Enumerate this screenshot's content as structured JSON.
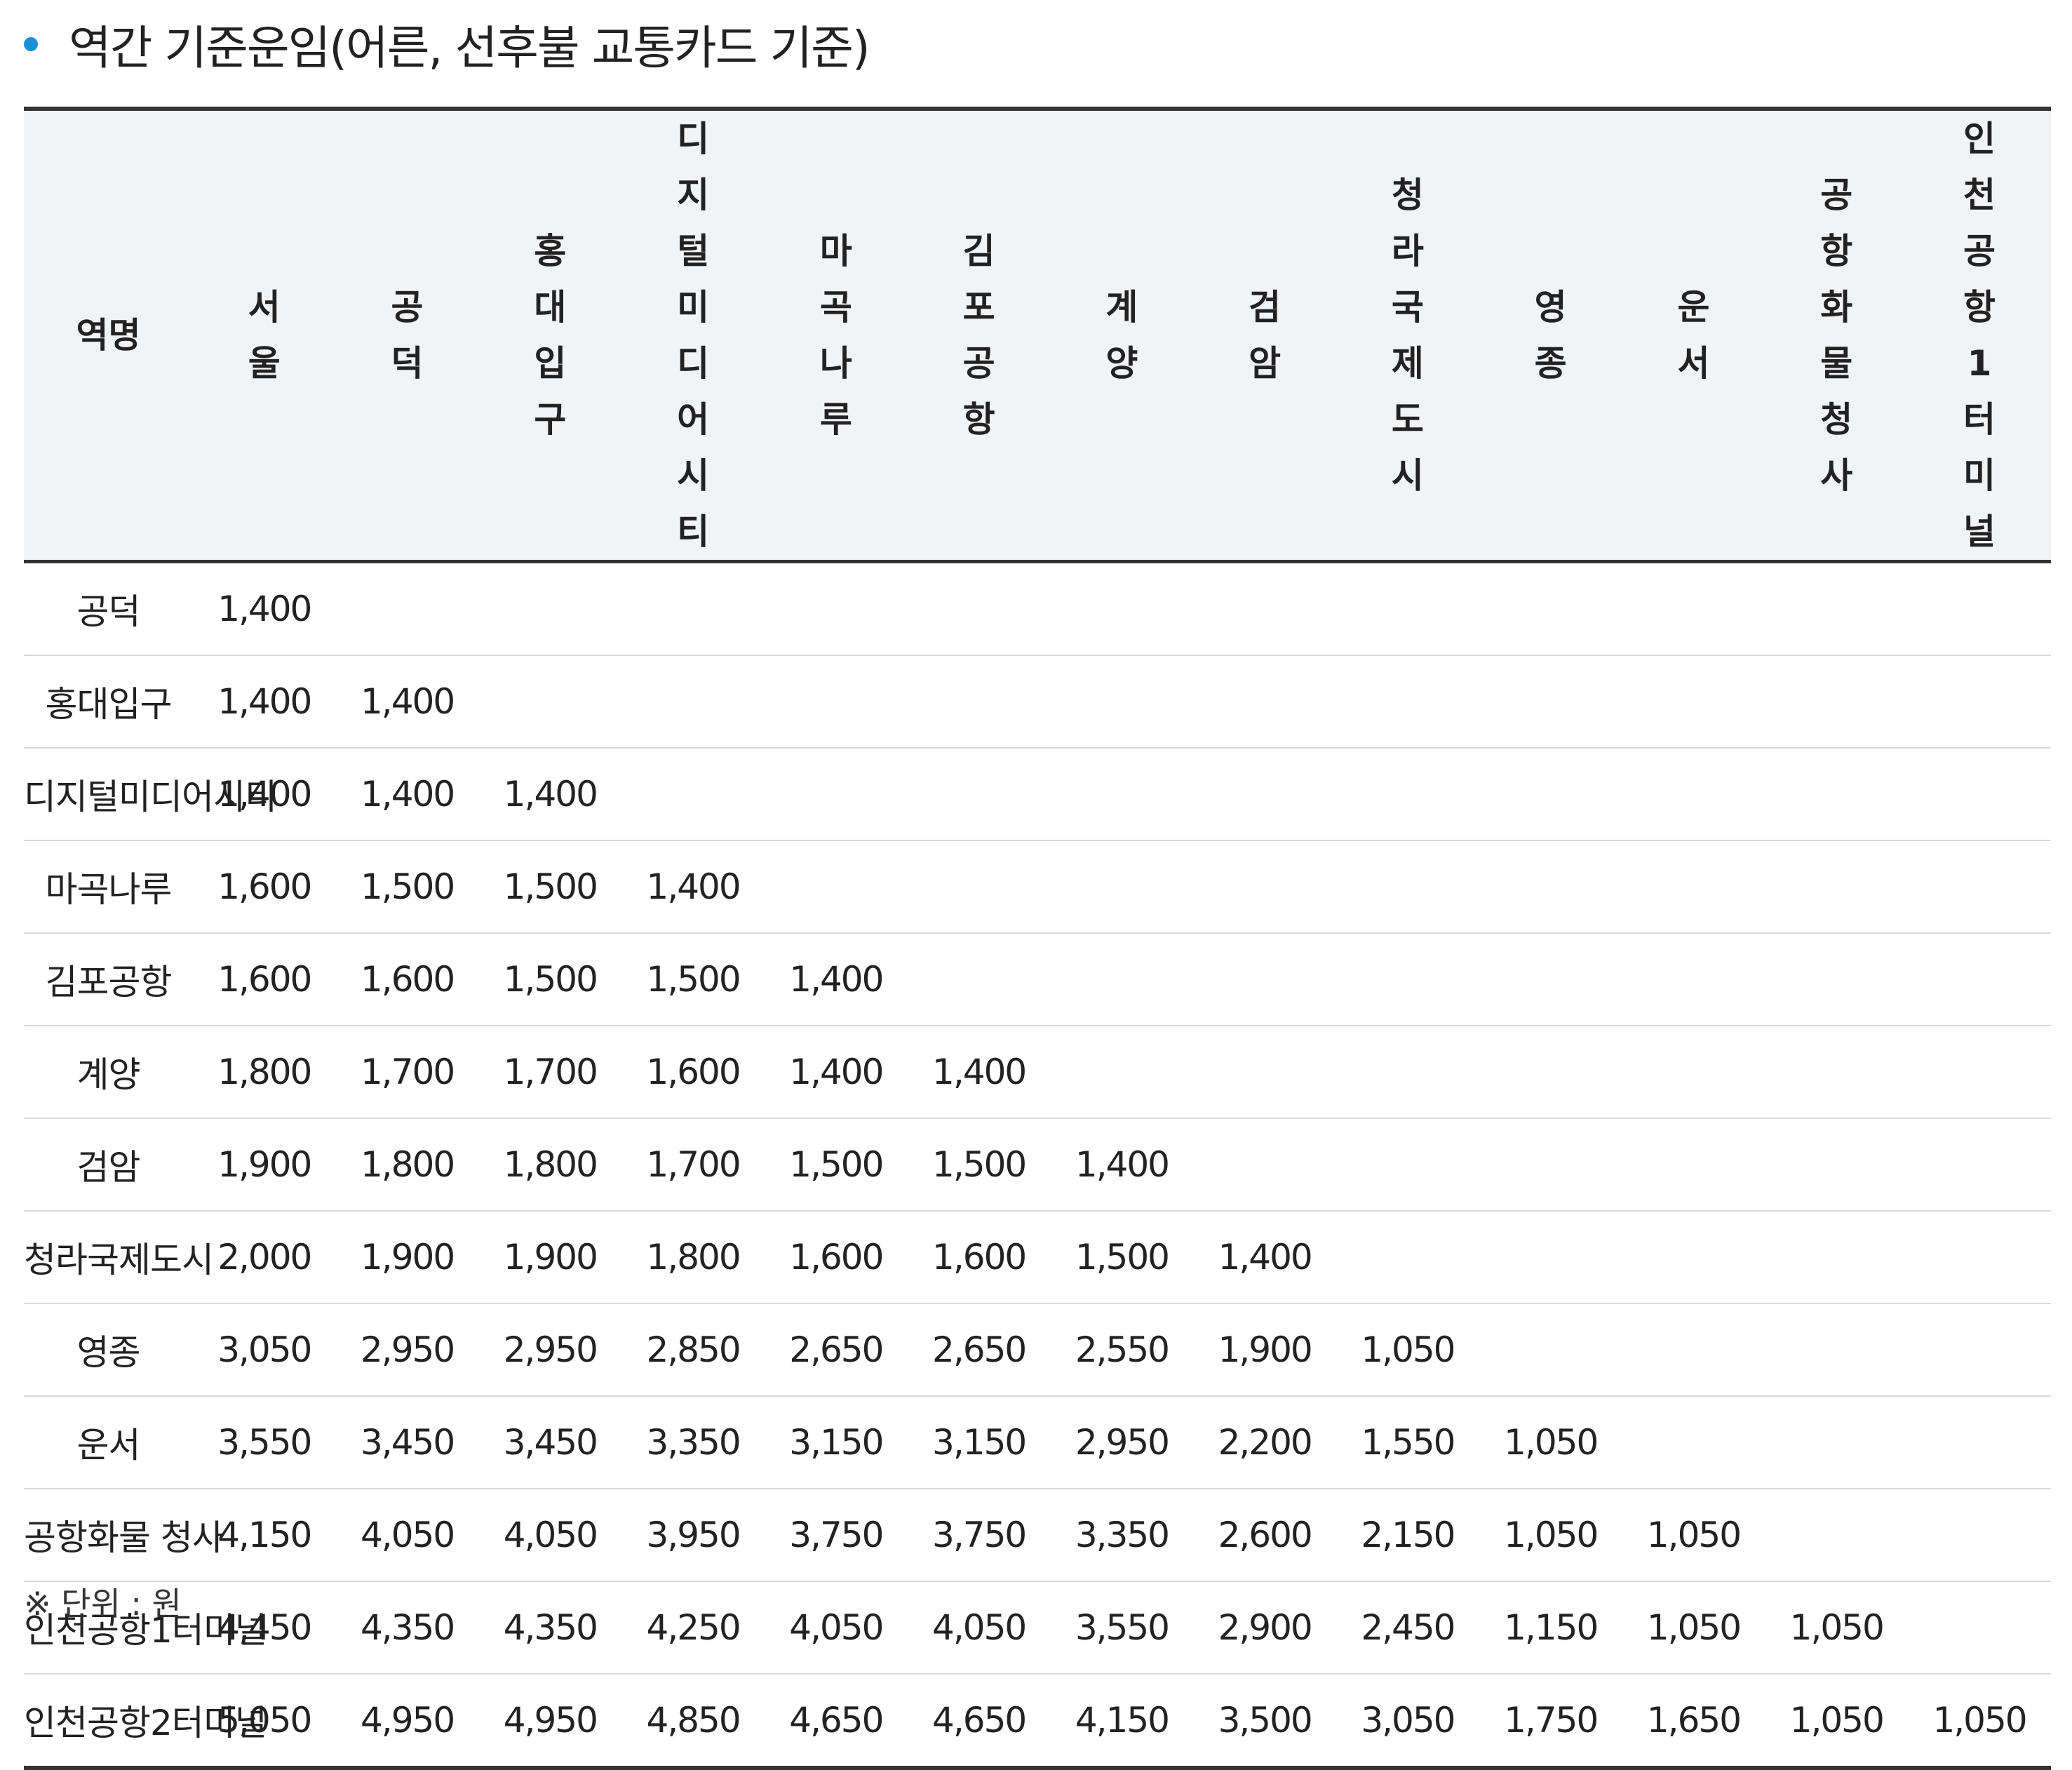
{
  "heading": {
    "title": "역간 기준운임(어른, 선후불 교통카드 기준)",
    "bullet_color": "#1a8fd6"
  },
  "table": {
    "header_station": "역명",
    "columns": [
      "서울",
      "공덕",
      "홍대입구",
      "디지털미디어시티",
      "마곡나루",
      "김포공항",
      "계양",
      "검암",
      "청라국제도시",
      "영종",
      "운서",
      "공항화물청사",
      "인천공항1터미널"
    ],
    "rows": [
      {
        "name": "공덕",
        "fares": [
          "1,400"
        ]
      },
      {
        "name": "홍대입구",
        "fares": [
          "1,400",
          "1,400"
        ]
      },
      {
        "name": "디지털미디어시티",
        "fares": [
          "1,400",
          "1,400",
          "1,400"
        ]
      },
      {
        "name": "마곡나루",
        "fares": [
          "1,600",
          "1,500",
          "1,500",
          "1,400"
        ]
      },
      {
        "name": "김포공항",
        "fares": [
          "1,600",
          "1,600",
          "1,500",
          "1,500",
          "1,400"
        ]
      },
      {
        "name": "계양",
        "fares": [
          "1,800",
          "1,700",
          "1,700",
          "1,600",
          "1,400",
          "1,400"
        ]
      },
      {
        "name": "검암",
        "fares": [
          "1,900",
          "1,800",
          "1,800",
          "1,700",
          "1,500",
          "1,500",
          "1,400"
        ]
      },
      {
        "name": "청라국제도시",
        "fares": [
          "2,000",
          "1,900",
          "1,900",
          "1,800",
          "1,600",
          "1,600",
          "1,500",
          "1,400"
        ]
      },
      {
        "name": "영종",
        "fares": [
          "3,050",
          "2,950",
          "2,950",
          "2,850",
          "2,650",
          "2,650",
          "2,550",
          "1,900",
          "1,050"
        ]
      },
      {
        "name": "운서",
        "fares": [
          "3,550",
          "3,450",
          "3,450",
          "3,350",
          "3,150",
          "3,150",
          "2,950",
          "2,200",
          "1,550",
          "1,050"
        ]
      },
      {
        "name": "공항화물 청사",
        "fares": [
          "4,150",
          "4,050",
          "4,050",
          "3,950",
          "3,750",
          "3,750",
          "3,350",
          "2,600",
          "2,150",
          "1,050",
          "1,050"
        ]
      },
      {
        "name": "인천공항1터미널",
        "fares": [
          "4,450",
          "4,350",
          "4,350",
          "4,250",
          "4,050",
          "4,050",
          "3,550",
          "2,900",
          "2,450",
          "1,150",
          "1,050",
          "1,050"
        ]
      },
      {
        "name": "인천공항2터미널",
        "fares": [
          "5,050",
          "4,950",
          "4,950",
          "4,850",
          "4,650",
          "4,650",
          "4,150",
          "3,500",
          "3,050",
          "1,750",
          "1,650",
          "1,050",
          "1,050"
        ]
      }
    ]
  },
  "footnote": "※ 단위 : 원"
}
